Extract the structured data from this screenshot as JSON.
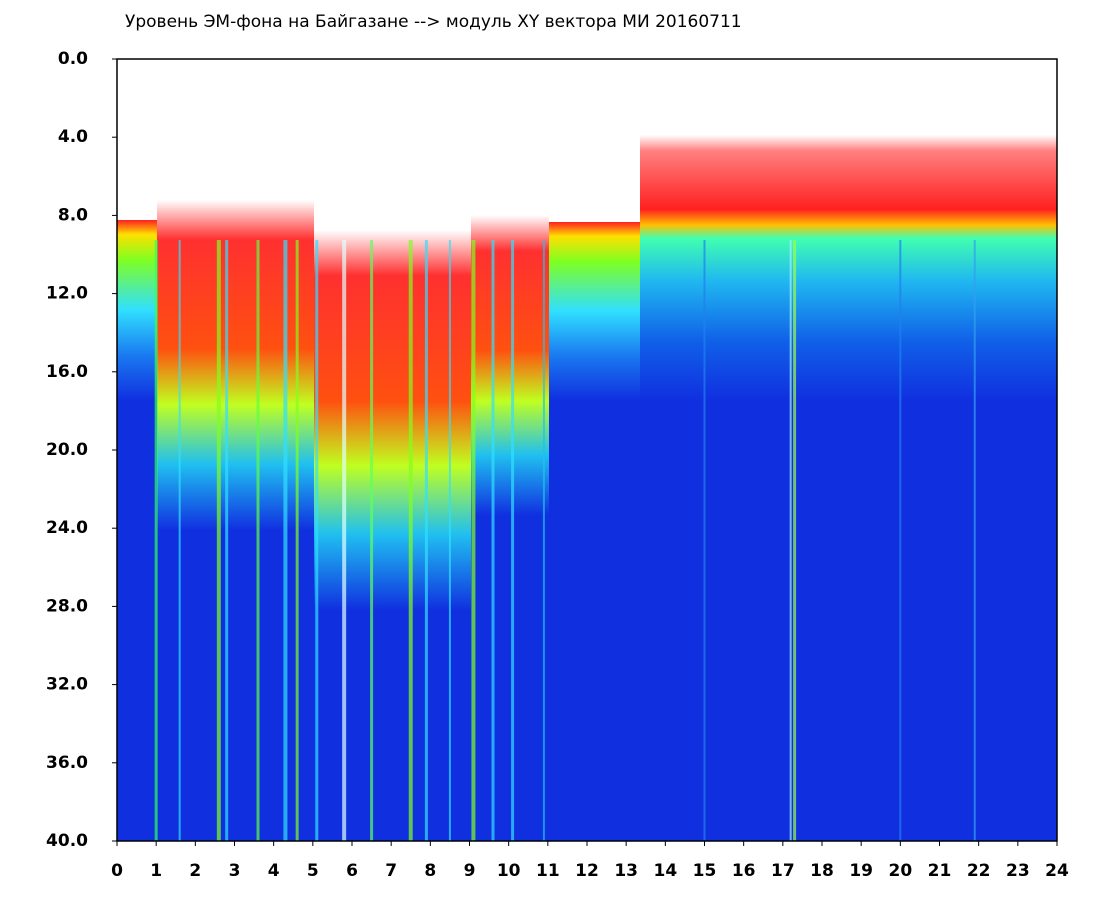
{
  "chart_data": {
    "type": "heatmap",
    "title": "Уровень ЭМ-фона на Байгазане   -->  модуль XY вектора МИ  20160711",
    "xlim": [
      0,
      24
    ],
    "xticks": [
      0,
      1,
      2,
      3,
      4,
      5,
      6,
      7,
      8,
      9,
      10,
      11,
      12,
      13,
      14,
      15,
      16,
      17,
      18,
      19,
      20,
      21,
      22,
      23,
      24
    ],
    "ylim": [
      0,
      40
    ],
    "y_inverted": true,
    "yticks": [
      {
        "value": 0,
        "label": "0.0"
      },
      {
        "value": 4,
        "label": "4.0"
      },
      {
        "value": 8,
        "label": "8.0"
      },
      {
        "value": 12,
        "label": "12.0"
      },
      {
        "value": 16,
        "label": "16.0"
      },
      {
        "value": 20,
        "label": "20.0"
      },
      {
        "value": 24,
        "label": "24.0"
      },
      {
        "value": 28,
        "label": "28.0"
      },
      {
        "value": 32,
        "label": "32.0"
      },
      {
        "value": 36,
        "label": "36.0"
      },
      {
        "value": 40,
        "label": "40.0"
      }
    ]
  }
}
